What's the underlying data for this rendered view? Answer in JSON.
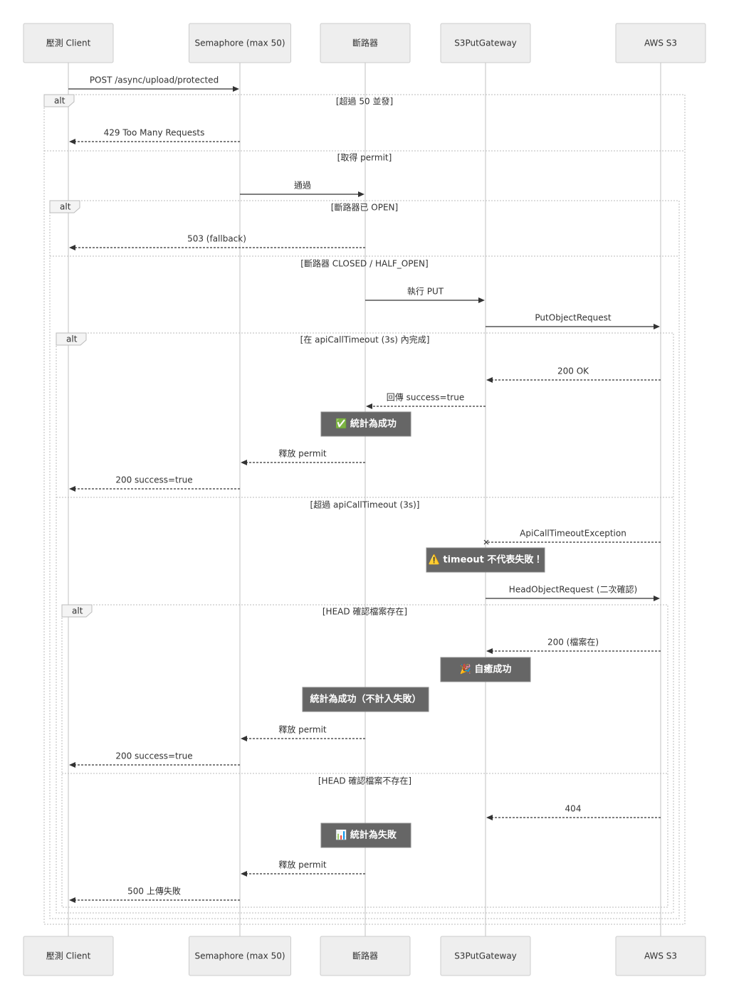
{
  "participants": [
    "壓測 Client",
    "Semaphore (max 50)",
    "斷路器",
    "S3PutGateway",
    "AWS S3"
  ],
  "messages": [
    "POST /async/upload/protected",
    "429 Too Many Requests",
    "通過",
    "503 (fallback)",
    "執行 PUT",
    "PutObjectRequest",
    "200 OK",
    "回傳 success=true",
    "釋放 permit",
    "200 success=true",
    "ApiCallTimeoutException",
    "HeadObjectRequest (二次確認)",
    "200 (檔案在)",
    "釋放 permit",
    "200 success=true",
    "404",
    "釋放 permit",
    "500 上傳失敗"
  ],
  "fragments": [
    {
      "label": "alt",
      "conditions": [
        "[超過 50 並發]",
        "[取得 permit]"
      ]
    },
    {
      "label": "alt",
      "conditions": [
        "[斷路器已 OPEN]",
        "[斷路器 CLOSED / HALF_OPEN]"
      ]
    },
    {
      "label": "alt",
      "conditions": [
        "[在 apiCallTimeout (3s) 內完成]",
        "[超過 apiCallTimeout (3s)]"
      ]
    },
    {
      "label": "alt",
      "conditions": [
        "[HEAD 確認檔案存在]",
        "[HEAD 確認檔案不存在]"
      ]
    }
  ],
  "notes": [
    "✅ 統計為成功",
    "⚠️ timeout 不代表失敗！",
    "🎉 自癒成功",
    "統計為成功（不計入失敗）",
    "📊 統計為失敗"
  ]
}
